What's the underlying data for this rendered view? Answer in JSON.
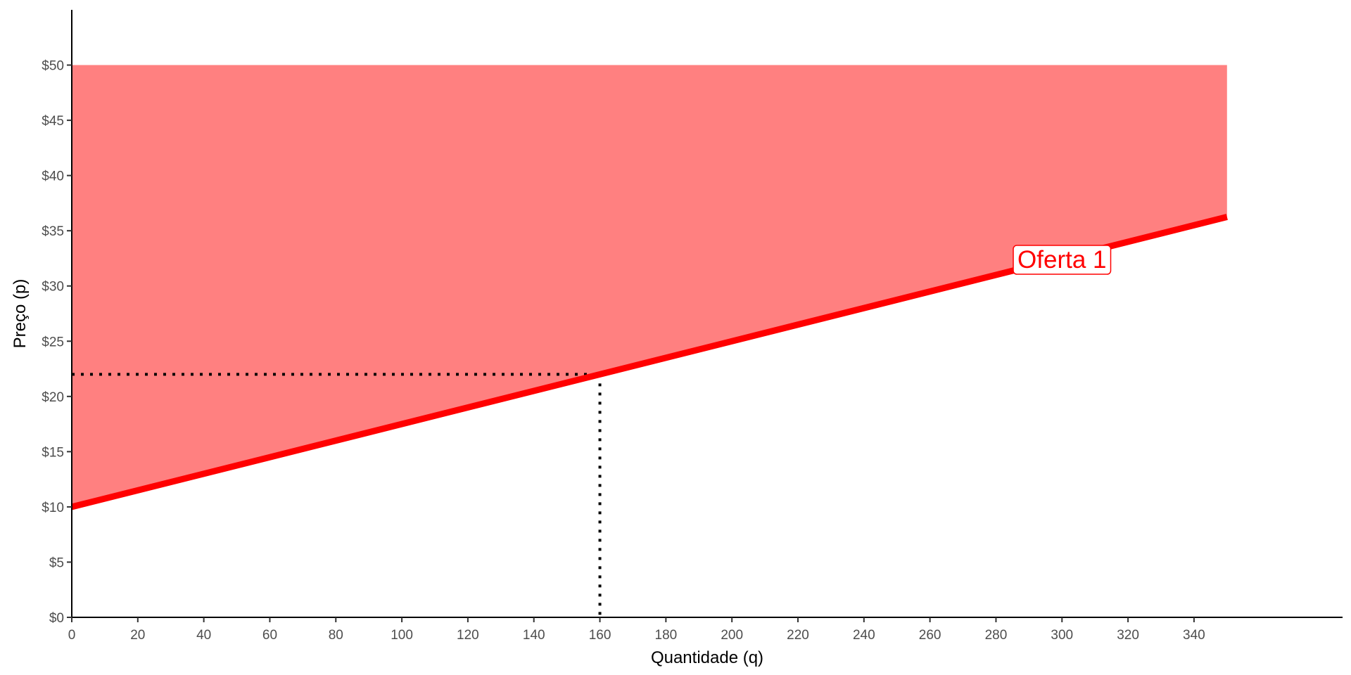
{
  "chart_data": {
    "type": "line",
    "xlabel": "Quantidade (q)",
    "ylabel": "Preço (p)",
    "xlim": [
      0,
      385
    ],
    "ylim": [
      0,
      55
    ],
    "x_ticks": [
      0,
      20,
      40,
      60,
      80,
      100,
      120,
      140,
      160,
      180,
      200,
      220,
      240,
      260,
      280,
      300,
      320,
      340
    ],
    "x_tick_labels": [
      "0",
      "20",
      "40",
      "60",
      "80",
      "100",
      "120",
      "140",
      "160",
      "180",
      "200",
      "220",
      "240",
      "260",
      "280",
      "300",
      "320",
      "340"
    ],
    "y_ticks": [
      0,
      5,
      10,
      15,
      20,
      25,
      30,
      35,
      40,
      45,
      50
    ],
    "y_tick_labels": [
      "$0",
      "$5",
      "$10",
      "$15",
      "$20",
      "$25",
      "$30",
      "$35",
      "$40",
      "$45",
      "$50"
    ],
    "grid": false,
    "series": [
      {
        "name": "Oferta 1",
        "x": [
          0,
          350
        ],
        "y": [
          10,
          36.25
        ],
        "color": "#ff0000",
        "label_at": [
          300,
          32.4
        ]
      }
    ],
    "shaded_region": {
      "x_range": [
        0,
        350
      ],
      "upper_y": 50,
      "lower": "Oferta 1",
      "color": "#ff8080"
    },
    "reference_point": {
      "x": 160,
      "y": 22,
      "color": "#000000",
      "style": "dotted"
    }
  }
}
